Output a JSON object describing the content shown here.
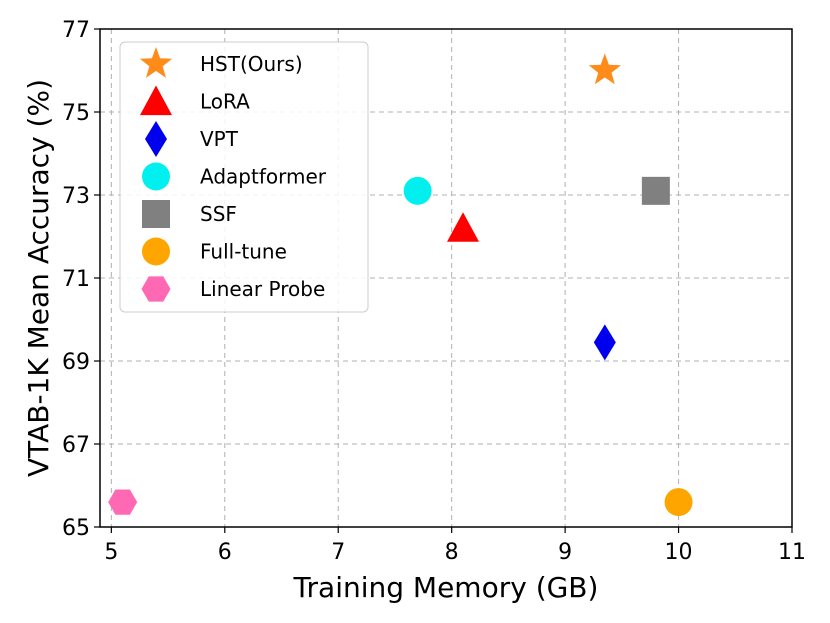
{
  "chart_data": {
    "type": "scatter",
    "title": "",
    "xlabel": "Training Memory (GB)",
    "ylabel": "VTAB-1K Mean Accuracy (%)",
    "xlim": [
      4.9,
      11
    ],
    "ylim": [
      65,
      77
    ],
    "xticks": [
      5,
      6,
      7,
      8,
      9,
      10,
      11
    ],
    "yticks": [
      65,
      67,
      69,
      71,
      73,
      75,
      77
    ],
    "grid": true,
    "legend_position": "top-left",
    "series": [
      {
        "name": "HST(Ours)",
        "marker": "star",
        "color": "#ff8c1a",
        "points": [
          {
            "x": 9.35,
            "y": 76.0
          }
        ]
      },
      {
        "name": "LoRA",
        "marker": "triangle",
        "color": "#ff0000",
        "points": [
          {
            "x": 8.1,
            "y": 72.2
          }
        ]
      },
      {
        "name": "VPT",
        "marker": "diamond",
        "color": "#0000ee",
        "points": [
          {
            "x": 9.35,
            "y": 69.45
          }
        ]
      },
      {
        "name": "Adaptformer",
        "marker": "circle",
        "color": "#00f0f0",
        "points": [
          {
            "x": 7.7,
            "y": 73.1
          }
        ]
      },
      {
        "name": "SSF",
        "marker": "square",
        "color": "#808080",
        "points": [
          {
            "x": 9.8,
            "y": 73.1
          }
        ]
      },
      {
        "name": "Full-tune",
        "marker": "circle",
        "color": "#ffa500",
        "points": [
          {
            "x": 10.0,
            "y": 65.6
          }
        ]
      },
      {
        "name": "Linear Probe",
        "marker": "hexagon",
        "color": "#ff69b4",
        "points": [
          {
            "x": 5.1,
            "y": 65.6
          }
        ]
      }
    ]
  }
}
